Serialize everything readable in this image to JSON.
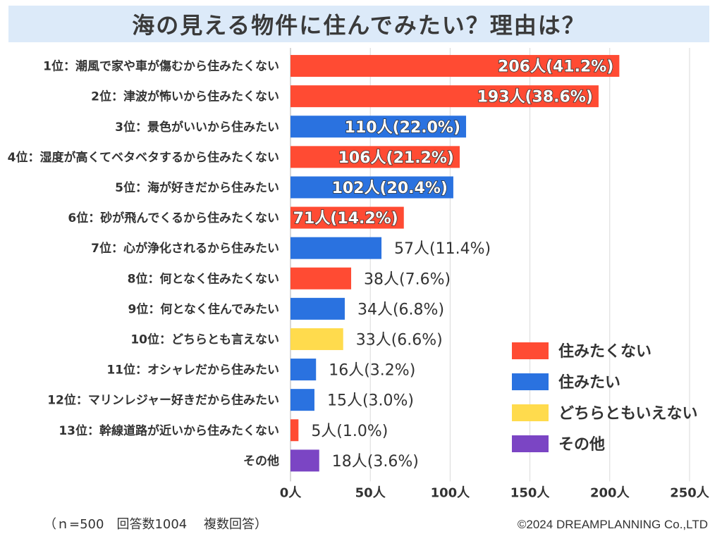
{
  "title": "海の見える物件に住んでみたい？理由は？",
  "footnote": "（ｎ=500　回答数1004　 複数回答）",
  "copyright": "©2024 DREAMPLANNING Co.,LTD",
  "colors": {
    "not_want": "#ff4b33",
    "want": "#2a72e0",
    "neutral": "#ffdb4d",
    "other": "#7b45c4"
  },
  "legend": [
    {
      "label": "住みたくない",
      "color_key": "not_want"
    },
    {
      "label": "住みたい",
      "color_key": "want"
    },
    {
      "label": "どちらともいえない",
      "color_key": "neutral"
    },
    {
      "label": "その他",
      "color_key": "other"
    }
  ],
  "chart_data": {
    "type": "bar",
    "orientation": "horizontal",
    "title": "海の見える物件に住んでみたい？理由は？",
    "xlabel": "",
    "ylabel": "",
    "xlim": [
      0,
      250
    ],
    "xticks": [
      0,
      50,
      100,
      150,
      200,
      250
    ],
    "tick_labels": [
      "0人",
      "50人",
      "100人",
      "150人",
      "200人",
      "250人"
    ],
    "grid": true,
    "legend_position": "bottom-right",
    "categories": [
      "1位：潮風で家や車が傷むから住みたくない",
      "2位：津波が怖いから住みたくない",
      "3位：景色がいいから住みたい",
      "4位：湿度が高くてベタベタするから住みたくない",
      "5位：海が好きだから住みたい",
      "6位：砂が飛んでくるから住みたくない",
      "7位：心が浄化されるから住みたい",
      "8位：何となく住みたくない",
      "9位：何となく住んでみたい",
      "10位：どちらとも言えない",
      "11位：オシャレだから住みたい",
      "12位：マリンレジャー好きだから住みたい",
      "13位：幹線道路が近いから住みたくない",
      "その他"
    ],
    "values": [
      206,
      193,
      110,
      106,
      102,
      71,
      57,
      38,
      34,
      33,
      16,
      15,
      5,
      18
    ],
    "value_labels": [
      "206人(41.2%)",
      "193人(38.6%)",
      "110人(22.0%)",
      "106人(21.2%)",
      "102人(20.4%)",
      "71人(14.2%)",
      "57人(11.4%)",
      "38人(7.6%)",
      "34人(6.8%)",
      "33人(6.6%)",
      "16人(3.2%)",
      "15人(3.0%)",
      "5人(1.0%)",
      "18人(3.6%)"
    ],
    "groups": [
      "not_want",
      "not_want",
      "want",
      "not_want",
      "want",
      "not_want",
      "want",
      "not_want",
      "want",
      "neutral",
      "want",
      "want",
      "not_want",
      "other"
    ]
  }
}
